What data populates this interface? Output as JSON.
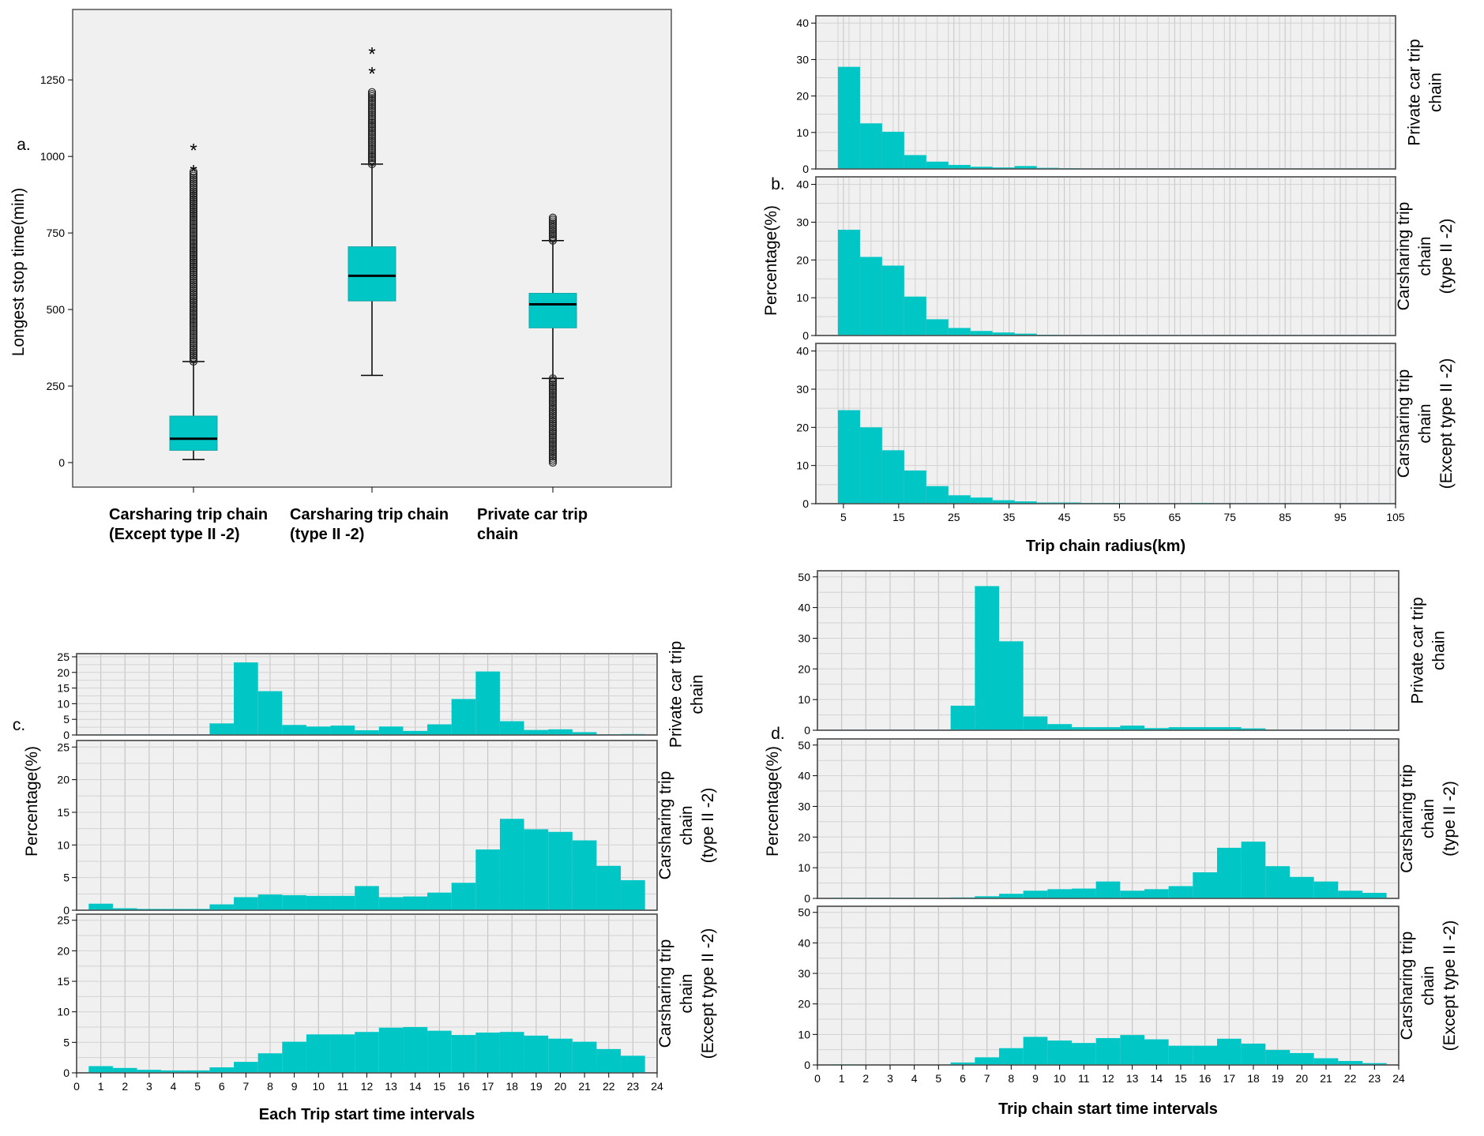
{
  "colors": {
    "bar": "#00C6C6",
    "bar_stroke": "#0a8f8f",
    "panel_bg": "#f0f0f0",
    "grid": "#d2d2d2",
    "frame": "#555555",
    "text": "#000000"
  },
  "chart_data": [
    {
      "id": "a",
      "type": "boxplot",
      "panel_label": "a.",
      "ylabel": "Longest stop time(min)",
      "yticks": [
        0,
        250,
        500,
        750,
        1000,
        1250
      ],
      "ylim": [
        -80,
        1480
      ],
      "categories": [
        {
          "name": "cat1",
          "label_lines": [
            "Carsharing trip chain",
            "(Except type II -2)"
          ],
          "min": 10,
          "q1": 40,
          "median": 78,
          "q3": 152,
          "max": 330,
          "outlier_range": [
            330,
            950
          ],
          "extremes": [
            955,
            1025
          ],
          "extreme_symbol": "*"
        },
        {
          "name": "cat2",
          "label_lines": [
            "Carsharing trip chain",
            "(type II -2)"
          ],
          "min": 285,
          "q1": 528,
          "median": 610,
          "q3": 705,
          "max": 975,
          "outlier_range": [
            975,
            1210
          ],
          "extremes": [
            1275,
            1340
          ],
          "extreme_symbol": "*"
        },
        {
          "name": "cat3",
          "label_lines": [
            "Private car trip",
            "chain"
          ],
          "min": 275,
          "q1": 440,
          "median": 517,
          "q3": 553,
          "max": 725,
          "outlier_range_high": [
            725,
            800
          ],
          "outlier_range_low": [
            0,
            275
          ]
        }
      ]
    },
    {
      "id": "b",
      "type": "histogram",
      "panel_label": "b.",
      "ylabel": "Percentage(%)",
      "xlabel": "Trip chain radius(km)",
      "x_start": 0,
      "x_end": 105,
      "xticks": [
        5,
        15,
        25,
        35,
        45,
        55,
        65,
        75,
        85,
        95,
        105
      ],
      "bin_width": 4,
      "bin_start": 4,
      "ylim": [
        0,
        42
      ],
      "yticks": [
        0,
        10,
        20,
        30,
        40
      ],
      "panels": [
        {
          "name": "private",
          "side_label_lines": [
            "Private car trip",
            "chain"
          ],
          "values": [
            28.0,
            12.5,
            10.2,
            3.8,
            2.0,
            1.1,
            0.6,
            0.4,
            0.8,
            0.3,
            0.2,
            0.1,
            0.1,
            0.1,
            0.1,
            0.1,
            0.1,
            0.1,
            0.1,
            0.1,
            0.1,
            0.1,
            0.1,
            0.1,
            0.1
          ]
        },
        {
          "name": "carsharing_type2",
          "side_label_lines": [
            "Carsharing trip",
            "chain",
            "(type II -2)"
          ],
          "values": [
            28.0,
            20.8,
            18.5,
            10.3,
            4.3,
            2.0,
            1.2,
            0.8,
            0.5,
            0.2,
            0.1,
            0.1,
            0.05,
            0.05,
            0.05,
            0.05,
            0.05,
            0.05,
            0.05,
            0.05,
            0.05,
            0.05,
            0.05,
            0.05,
            0.05
          ]
        },
        {
          "name": "carsharing_except",
          "side_label_lines": [
            "Carsharing trip",
            "chain",
            "(Except type II -2)"
          ],
          "values": [
            24.5,
            20.0,
            14.0,
            8.7,
            4.6,
            2.2,
            1.6,
            0.9,
            0.6,
            0.3,
            0.3,
            0.2,
            0.2,
            0.1,
            0.1,
            0.1,
            0.2,
            0.1,
            0.1,
            0.05,
            0.05,
            0.05,
            0.05,
            0.05,
            0.05
          ]
        }
      ]
    },
    {
      "id": "c",
      "type": "histogram",
      "panel_label": "c.",
      "ylabel": "Percentage(%)",
      "xlabel": "Each Trip start time intervals",
      "x_start": 0,
      "x_end": 24,
      "xticks": [
        0,
        1,
        2,
        3,
        4,
        5,
        6,
        7,
        8,
        9,
        10,
        11,
        12,
        13,
        14,
        15,
        16,
        17,
        18,
        19,
        20,
        21,
        22,
        23,
        24
      ],
      "bin_width": 1,
      "bin_start": 0.5,
      "ylim": [
        0,
        26
      ],
      "yticks": [
        0,
        5,
        10,
        15,
        20,
        25
      ],
      "panels": [
        {
          "name": "private",
          "side_label_lines": [
            "Private car trip",
            "chain"
          ],
          "values": [
            0.1,
            0.1,
            0.1,
            0.1,
            0.1,
            3.7,
            23.2,
            14.0,
            3.2,
            2.7,
            3.0,
            1.5,
            2.7,
            1.3,
            3.4,
            11.5,
            20.3,
            4.4,
            1.6,
            1.8,
            0.9,
            0.2,
            0.3
          ]
        },
        {
          "name": "carsharing_type2",
          "side_label_lines": [
            "Carsharing trip",
            "chain",
            "(type II -2)"
          ],
          "values": [
            1.0,
            0.3,
            0.2,
            0.2,
            0.2,
            0.9,
            2.0,
            2.4,
            2.3,
            2.2,
            2.2,
            3.7,
            2.0,
            2.1,
            2.7,
            4.2,
            9.3,
            14.0,
            12.4,
            12.0,
            10.7,
            6.8,
            4.6
          ]
        },
        {
          "name": "carsharing_except",
          "side_label_lines": [
            "Carsharing trip",
            "chain",
            "(Except type II -2)"
          ],
          "values": [
            1.1,
            0.8,
            0.5,
            0.4,
            0.4,
            0.9,
            1.8,
            3.2,
            5.1,
            6.3,
            6.3,
            6.7,
            7.4,
            7.5,
            6.9,
            6.2,
            6.6,
            6.7,
            6.1,
            5.6,
            5.1,
            3.9,
            2.8
          ]
        }
      ]
    },
    {
      "id": "d",
      "type": "histogram",
      "panel_label": "d.",
      "ylabel": "Percentage(%)",
      "xlabel": "Trip chain start time intervals",
      "x_start": 0,
      "x_end": 24,
      "xticks": [
        0,
        1,
        2,
        3,
        4,
        5,
        6,
        7,
        8,
        9,
        10,
        11,
        12,
        13,
        14,
        15,
        16,
        17,
        18,
        19,
        20,
        21,
        22,
        23,
        24
      ],
      "bin_width": 1,
      "bin_start": 0.5,
      "ylim": [
        0,
        52
      ],
      "yticks": [
        0,
        10,
        20,
        30,
        40,
        50
      ],
      "panels": [
        {
          "name": "private",
          "side_label_lines": [
            "Private car trip",
            "chain"
          ],
          "values": [
            0.1,
            0.1,
            0.1,
            0.1,
            0.1,
            8.0,
            47.0,
            29.0,
            4.5,
            2.0,
            1.0,
            1.0,
            1.5,
            0.7,
            1.0,
            1.0,
            1.0,
            0.6,
            0.1,
            0.1,
            0.1,
            0.1,
            0.1
          ]
        },
        {
          "name": "carsharing_type2",
          "side_label_lines": [
            "Carsharing trip",
            "chain",
            "(type II -2)"
          ],
          "values": [
            0.2,
            0.2,
            0.2,
            0.2,
            0.2,
            0.3,
            0.7,
            1.5,
            2.5,
            3.0,
            3.2,
            5.5,
            2.5,
            3.0,
            4.0,
            8.5,
            16.5,
            18.5,
            10.5,
            7.0,
            5.5,
            2.5,
            1.8
          ]
        },
        {
          "name": "carsharing_except",
          "side_label_lines": [
            "Carsharing trip",
            "chain",
            "(Except type II -2)"
          ],
          "values": [
            0.2,
            0.1,
            0.1,
            0.1,
            0.1,
            0.8,
            2.5,
            5.5,
            9.2,
            8.0,
            7.2,
            8.8,
            9.8,
            8.4,
            6.3,
            6.3,
            8.6,
            7.0,
            4.9,
            3.9,
            2.2,
            1.3,
            0.6
          ]
        }
      ]
    }
  ]
}
